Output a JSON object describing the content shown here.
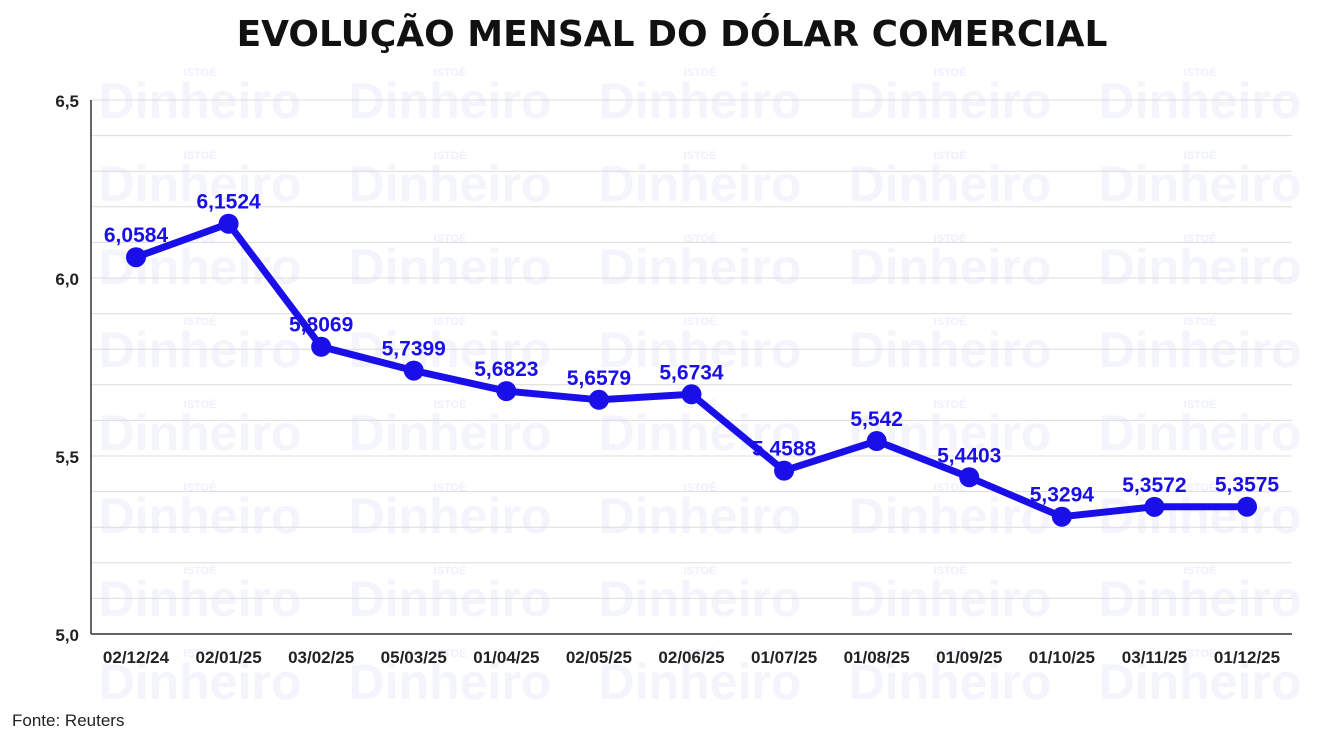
{
  "title": "EVOLUÇÃO MENSAL DO DÓLAR COMERCIAL",
  "source": "Fonte: Reuters",
  "watermark": {
    "small": "ISTOÉ",
    "big": "Dinheiro"
  },
  "colors": {
    "line": "#1a0fe8",
    "label": "#1a0fe8",
    "grid": "#dcdcdc",
    "axis": "#333333"
  },
  "chart_data": {
    "type": "line",
    "title": "EVOLUÇÃO MENSAL DO DÓLAR COMERCIAL",
    "xlabel": "",
    "ylabel": "",
    "categories": [
      "02/12/24",
      "02/01/25",
      "03/02/25",
      "05/03/25",
      "01/04/25",
      "02/05/25",
      "02/06/25",
      "01/07/25",
      "01/08/25",
      "01/09/25",
      "01/10/25",
      "03/11/25",
      "01/12/25"
    ],
    "values": [
      6.0584,
      6.1524,
      5.8069,
      5.7399,
      5.6823,
      5.6579,
      5.6734,
      5.4588,
      5.542,
      5.4403,
      5.3294,
      5.3572,
      5.3575
    ],
    "data_labels": [
      "6,0584",
      "6,1524",
      "5,8069",
      "5,7399",
      "5,6823",
      "5,6579",
      "5,6734",
      "5,4588",
      "5,542",
      "5,4403",
      "5,3294",
      "5,3572",
      "5,3575"
    ],
    "y_ticks": [
      5.0,
      5.5,
      6.0,
      6.5
    ],
    "y_tick_labels": [
      "5,0",
      "5,5",
      "6,0",
      "6,5"
    ],
    "ylim": [
      5.0,
      6.5
    ],
    "grid": true,
    "legend": "none"
  }
}
